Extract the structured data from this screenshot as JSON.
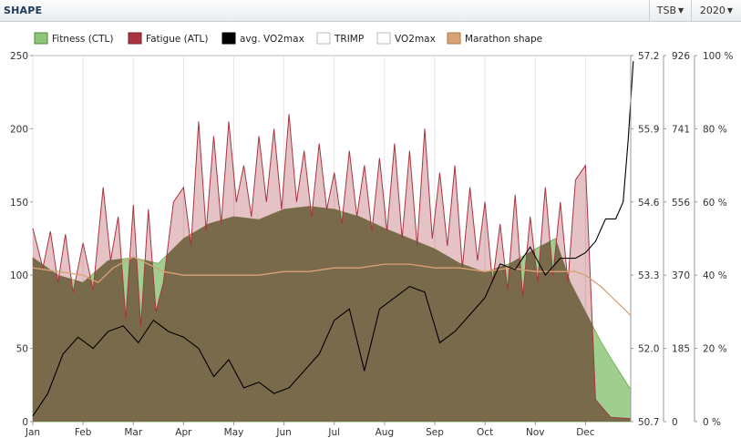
{
  "header": {
    "title": "SHAPE",
    "tsb_label": "TSB",
    "year_label": "2020"
  },
  "colors": {
    "fitness": "#8fc57a",
    "fatigue": "#a8343f",
    "vo2": "#000000",
    "marathon": "#d9a274",
    "overlap": "#7a6a4c"
  },
  "chart_data": {
    "type": "area",
    "title": "SHAPE",
    "legend": [
      "Fitness (CTL)",
      "Fatigue (ATL)",
      "avg. VO2max",
      "TRIMP",
      "VO2max",
      "Marathon shape"
    ],
    "legend_position": "top",
    "x_ticks": [
      "Jan",
      "Feb",
      "Mar",
      "Apr",
      "May",
      "Jun",
      "Jul",
      "Aug",
      "Sep",
      "Oct",
      "Nov",
      "Dec"
    ],
    "y_left": {
      "ticks": [
        "0",
        "50",
        "100",
        "150",
        "200",
        "250"
      ],
      "range": [
        0,
        250
      ]
    },
    "y_vo2": {
      "ticks": [
        "50.7",
        "52.0",
        "53.3",
        "54.6",
        "55.9",
        "57.2"
      ],
      "range": [
        50.7,
        57.2
      ]
    },
    "y_trimp": {
      "ticks": [
        "0",
        "185",
        "370",
        "556",
        "741",
        "926"
      ],
      "range": [
        0,
        926
      ]
    },
    "y_pct": {
      "ticks": [
        "0 %",
        "20 %",
        "40 %",
        "60 %",
        "80 %",
        "100 %"
      ],
      "range": [
        0,
        100
      ]
    },
    "series": [
      {
        "name": "Fitness (CTL)",
        "months": [
          0,
          0.5,
          1,
          1.5,
          2,
          2.5,
          3,
          3.5,
          4,
          4.5,
          5,
          5.5,
          6,
          6.5,
          7,
          7.5,
          8,
          8.5,
          9,
          9.5,
          10,
          10.4,
          10.7,
          11,
          11.3,
          11.6,
          11.9
        ],
        "values": [
          112,
          100,
          95,
          110,
          112,
          108,
          125,
          135,
          140,
          138,
          145,
          147,
          145,
          140,
          132,
          125,
          118,
          108,
          102,
          108,
          118,
          125,
          95,
          75,
          55,
          38,
          22
        ]
      },
      {
        "name": "Fatigue (ATL)",
        "months": [
          0,
          0.2,
          0.35,
          0.5,
          0.65,
          0.8,
          1,
          1.2,
          1.4,
          1.55,
          1.7,
          1.85,
          2,
          2.15,
          2.3,
          2.45,
          2.6,
          2.8,
          3,
          3.15,
          3.3,
          3.45,
          3.6,
          3.75,
          3.9,
          4.05,
          4.2,
          4.35,
          4.5,
          4.65,
          4.8,
          4.95,
          5.1,
          5.25,
          5.4,
          5.55,
          5.7,
          5.85,
          6,
          6.15,
          6.3,
          6.45,
          6.6,
          6.75,
          6.9,
          7.05,
          7.2,
          7.35,
          7.5,
          7.65,
          7.8,
          7.95,
          8.1,
          8.25,
          8.4,
          8.55,
          8.7,
          8.85,
          9,
          9.15,
          9.3,
          9.45,
          9.6,
          9.75,
          9.9,
          10.05,
          10.2,
          10.35,
          10.5,
          10.65,
          10.8,
          11,
          11.2,
          11.5,
          11.9
        ],
        "values": [
          132,
          105,
          130,
          95,
          128,
          88,
          122,
          90,
          160,
          110,
          140,
          70,
          148,
          65,
          145,
          75,
          95,
          150,
          160,
          120,
          205,
          130,
          195,
          135,
          205,
          150,
          175,
          140,
          195,
          150,
          200,
          145,
          210,
          150,
          185,
          140,
          190,
          145,
          170,
          135,
          185,
          140,
          175,
          130,
          180,
          130,
          190,
          125,
          185,
          120,
          200,
          125,
          170,
          120,
          175,
          105,
          160,
          110,
          150,
          95,
          135,
          90,
          155,
          85,
          140,
          95,
          160,
          100,
          150,
          95,
          165,
          175,
          15,
          3,
          2
        ]
      },
      {
        "name": "avg. VO2max",
        "months": [
          0,
          0.3,
          0.6,
          0.9,
          1.2,
          1.5,
          1.8,
          2.1,
          2.4,
          2.7,
          3,
          3.3,
          3.6,
          3.9,
          4.2,
          4.5,
          4.8,
          5.1,
          5.4,
          5.7,
          6,
          6.3,
          6.6,
          6.9,
          7.2,
          7.5,
          7.8,
          8.1,
          8.4,
          8.7,
          9,
          9.3,
          9.6,
          9.9,
          10.2,
          10.5,
          10.8,
          11,
          11.2,
          11.4,
          11.6,
          11.75,
          11.85,
          11.95
        ],
        "values": [
          50.8,
          51.2,
          51.9,
          52.2,
          52.0,
          52.3,
          52.4,
          52.1,
          52.5,
          52.3,
          52.2,
          52.0,
          51.5,
          51.8,
          51.3,
          51.4,
          51.2,
          51.3,
          51.6,
          51.9,
          52.5,
          52.7,
          51.6,
          52.7,
          52.9,
          53.1,
          53.0,
          52.1,
          52.3,
          52.6,
          52.9,
          53.5,
          53.4,
          53.8,
          53.3,
          53.6,
          53.6,
          53.7,
          53.9,
          54.3,
          54.3,
          54.6,
          55.7,
          57.1
        ]
      },
      {
        "name": "Marathon shape",
        "months": [
          0,
          0.5,
          1,
          1.3,
          1.6,
          2,
          2.3,
          2.6,
          3,
          3.5,
          4,
          4.5,
          5,
          5.5,
          6,
          6.5,
          7,
          7.5,
          8,
          8.5,
          9,
          9.5,
          10,
          10.5,
          10.8,
          11,
          11.3,
          11.6,
          11.9
        ],
        "values": [
          42,
          41,
          40,
          38,
          42,
          45,
          43,
          41,
          40,
          40,
          40,
          40,
          41,
          41,
          42,
          42,
          43,
          43,
          42,
          42,
          41,
          42,
          41,
          41,
          41,
          40,
          37,
          33,
          29
        ]
      }
    ]
  }
}
